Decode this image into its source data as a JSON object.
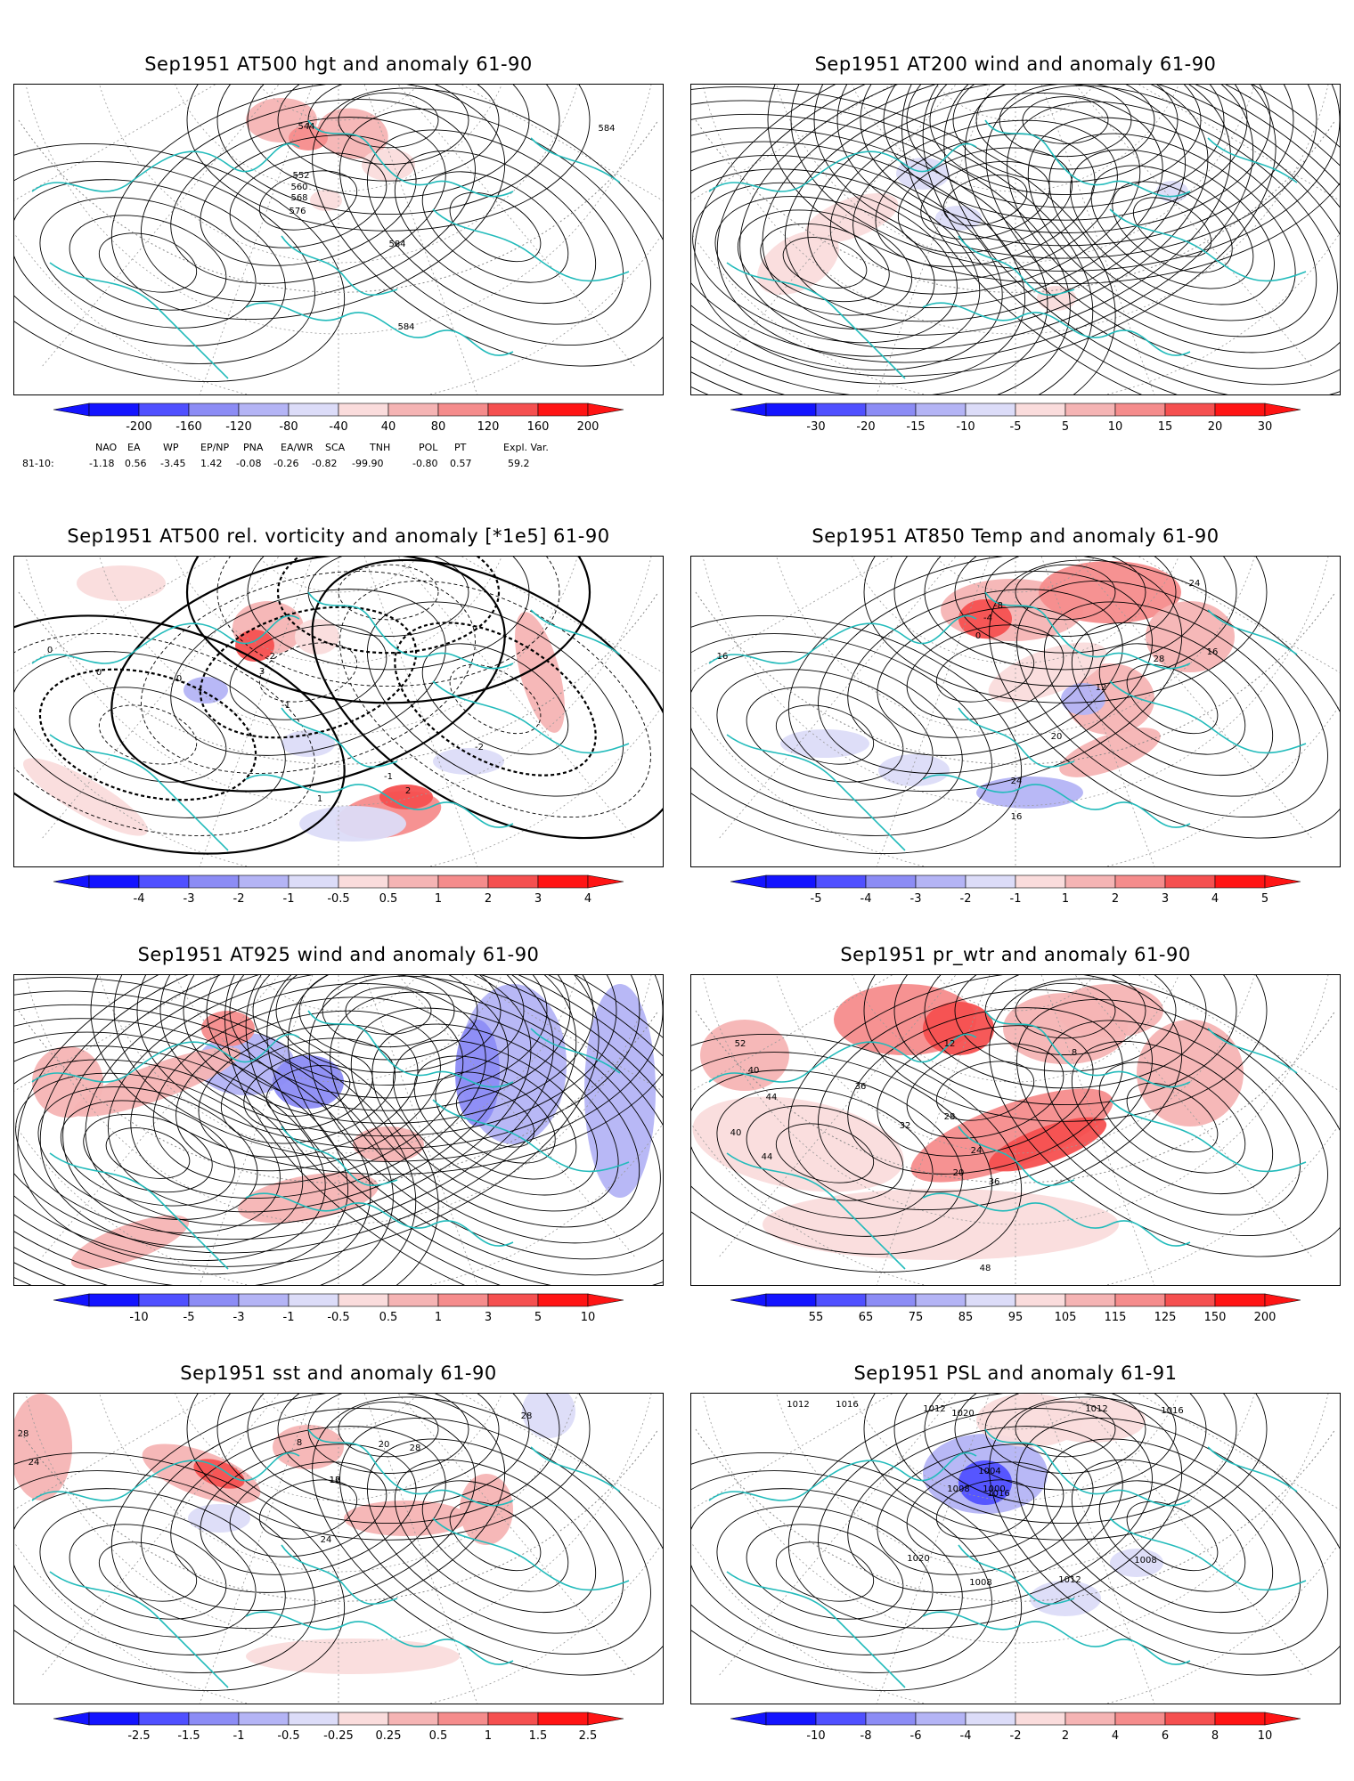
{
  "panels": [
    {
      "title": "Sep1951 AT500 hgt and anomaly 61-90",
      "colorbar": {
        "labels": [
          "-200",
          "-160",
          "-120",
          "-80",
          "-40",
          "40",
          "80",
          "120",
          "160",
          "200"
        ]
      },
      "contour_labels": [
        "544",
        "552",
        "560",
        "568",
        "576",
        "584",
        "584",
        "584"
      ]
    },
    {
      "title": "Sep1951 AT200 wind and anomaly 61-90",
      "colorbar": {
        "labels": [
          "-30",
          "-20",
          "-15",
          "-10",
          "-5",
          "5",
          "10",
          "15",
          "20",
          "30"
        ]
      },
      "contour_labels": []
    },
    {
      "title": "Sep1951 AT500 rel. vorticity and anomaly [*1e5] 61-90",
      "colorbar": {
        "labels": [
          "-4",
          "-3",
          "-2",
          "-1",
          "-0.5",
          "0.5",
          "1",
          "2",
          "3",
          "4"
        ]
      },
      "contour_labels": [
        "0",
        "0",
        "0",
        "-2",
        "3",
        "-1",
        "-2",
        "1",
        "-1",
        "2"
      ]
    },
    {
      "title": "Sep1951 AT850 Temp and anomaly 61-90",
      "colorbar": {
        "labels": [
          "-5",
          "-4",
          "-3",
          "-2",
          "-1",
          "1",
          "2",
          "3",
          "4",
          "5"
        ]
      },
      "contour_labels": [
        "-8",
        "-4",
        "0",
        "24",
        "16",
        "28",
        "12",
        "20",
        "24",
        "16",
        "16"
      ]
    },
    {
      "title": "Sep1951 AT925 wind and anomaly 61-90",
      "colorbar": {
        "labels": [
          "-10",
          "-5",
          "-3",
          "-1",
          "-0.5",
          "0.5",
          "1",
          "3",
          "5",
          "10"
        ]
      },
      "contour_labels": []
    },
    {
      "title": "Sep1951 pr_wtr and anomaly 61-90",
      "colorbar": {
        "labels": [
          "55",
          "65",
          "75",
          "85",
          "95",
          "105",
          "115",
          "125",
          "150",
          "200"
        ]
      },
      "contour_labels": [
        "52",
        "40",
        "44",
        "36",
        "32",
        "28",
        "20",
        "24",
        "48",
        "16",
        "12",
        "8",
        "40",
        "44",
        "36"
      ]
    },
    {
      "title": "Sep1951 sst and anomaly 61-90",
      "colorbar": {
        "labels": [
          "-2.5",
          "-1.5",
          "-1",
          "-0.5",
          "-0.25",
          "0.25",
          "0.5",
          "1",
          "1.5",
          "2.5"
        ]
      },
      "contour_labels": [
        "28",
        "24",
        "28",
        "20",
        "16",
        "12",
        "8",
        "24",
        "28"
      ]
    },
    {
      "title": "Sep1951 PSL and anomaly 61-91",
      "colorbar": {
        "labels": [
          "-10",
          "-8",
          "-6",
          "-4",
          "-2",
          "2",
          "4",
          "6",
          "8",
          "10"
        ]
      },
      "contour_labels": [
        "1012",
        "1016",
        "1012",
        "1020",
        "1016",
        "1004",
        "1000",
        "1008",
        "1012",
        "1016",
        "1020",
        "1008",
        "1012",
        "1008"
      ]
    }
  ],
  "teleconnections": {
    "headers": [
      "NAO",
      "EA",
      "WP",
      "EP/NP",
      "PNA",
      "EA/WR",
      "SCA",
      "TNH",
      "POL",
      "PT",
      "Expl. Var."
    ],
    "row_label": "81-10:",
    "values": [
      "-1.18",
      "0.56",
      "-3.45",
      "1.42",
      "-0.08",
      "-0.26",
      "-0.82",
      "-99.90",
      "-0.80",
      "0.57",
      "59.2"
    ]
  },
  "colors": {
    "coast": "#22bbbb",
    "contour": "#000000",
    "neg": [
      "#1414ff",
      "#5050ff",
      "#8c8cf5",
      "#b4b4f5",
      "#dcdcf8"
    ],
    "pos": [
      "#fadcdc",
      "#f5b4b4",
      "#f58c8c",
      "#f55050",
      "#ff1414"
    ]
  }
}
